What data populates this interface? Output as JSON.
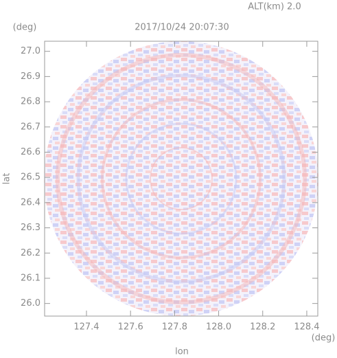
{
  "chart_data": {
    "type": "radar-ppi",
    "title": "2017/10/24 20:07:30",
    "subtitle": "ALT(km) 2.0",
    "x_label": "lon",
    "y_label": "lat",
    "x_unit": "(deg)",
    "y_unit": "(deg)",
    "xlim": [
      127.21,
      128.45
    ],
    "ylim": [
      25.95,
      27.04
    ],
    "xticks": [
      127.4,
      127.6,
      127.8,
      {
        "value": 128,
        "label": "128.0"
      },
      128.2,
      128.4
    ],
    "yticks": [
      {
        "value": 26,
        "label": "26.0"
      },
      26.1,
      26.2,
      26.3,
      26.4,
      26.5,
      26.6,
      26.7,
      26.8,
      26.9,
      {
        "value": 27,
        "label": "27.0"
      }
    ]
  }
}
